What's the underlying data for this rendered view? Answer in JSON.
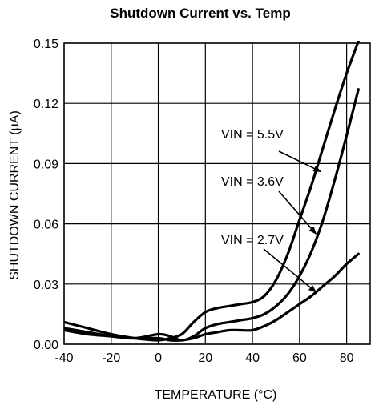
{
  "chart_data": {
    "type": "line",
    "title": "Shutdown Current vs. Temp",
    "xlabel": "TEMPERATURE (°C)",
    "ylabel": "SHUTDOWN CURRENT (µA)",
    "xlim": [
      -40,
      90
    ],
    "ylim": [
      0,
      0.15
    ],
    "xticks": [
      -40,
      -20,
      0,
      20,
      40,
      60,
      80
    ],
    "yticks": [
      0,
      0.03,
      0.06,
      0.09,
      0.12,
      0.15
    ],
    "xtick_labels": [
      "-40",
      "-20",
      "0",
      "20",
      "40",
      "60",
      "80"
    ],
    "ytick_labels": [
      "0.00",
      "0.03",
      "0.06",
      "0.09",
      "0.12",
      "0.15"
    ],
    "grid": true,
    "legend": "none",
    "series": [
      {
        "name": "VIN = 5.5V",
        "x": [
          -40,
          -30,
          -20,
          -10,
          0,
          5,
          10,
          15,
          20,
          25,
          30,
          35,
          40,
          45,
          50,
          55,
          60,
          65,
          70,
          75,
          80,
          85
        ],
        "y": [
          0.011,
          0.008,
          0.005,
          0.003,
          0.002,
          0.003,
          0.005,
          0.011,
          0.016,
          0.018,
          0.019,
          0.02,
          0.021,
          0.024,
          0.032,
          0.045,
          0.062,
          0.079,
          0.098,
          0.117,
          0.135,
          0.151
        ]
      },
      {
        "name": "VIN = 3.6V",
        "x": [
          -40,
          -30,
          -20,
          -10,
          0,
          5,
          10,
          15,
          20,
          25,
          30,
          35,
          40,
          45,
          50,
          55,
          60,
          65,
          70,
          75,
          80,
          85
        ],
        "y": [
          0.008,
          0.006,
          0.004,
          0.003,
          0.005,
          0.004,
          0.002,
          0.004,
          0.008,
          0.01,
          0.011,
          0.012,
          0.013,
          0.015,
          0.019,
          0.025,
          0.034,
          0.046,
          0.062,
          0.082,
          0.104,
          0.127
        ]
      },
      {
        "name": "VIN = 2.7V",
        "x": [
          -40,
          -30,
          -20,
          -10,
          0,
          5,
          10,
          15,
          20,
          25,
          30,
          35,
          40,
          45,
          50,
          55,
          60,
          65,
          70,
          75,
          80,
          85
        ],
        "y": [
          0.007,
          0.005,
          0.004,
          0.003,
          0.003,
          0.002,
          0.002,
          0.003,
          0.005,
          0.006,
          0.007,
          0.007,
          0.007,
          0.009,
          0.012,
          0.016,
          0.02,
          0.024,
          0.029,
          0.034,
          0.04,
          0.045
        ]
      }
    ],
    "annotations": [
      {
        "text": "VIN = 5.5V",
        "series": 0,
        "arrow_to": [
          69,
          0.086
        ]
      },
      {
        "text": "VIN = 3.6V",
        "series": 1,
        "arrow_to": [
          67,
          0.055
        ]
      },
      {
        "text": "VIN = 2.7V",
        "series": 2,
        "arrow_to": [
          67,
          0.026
        ]
      }
    ]
  }
}
